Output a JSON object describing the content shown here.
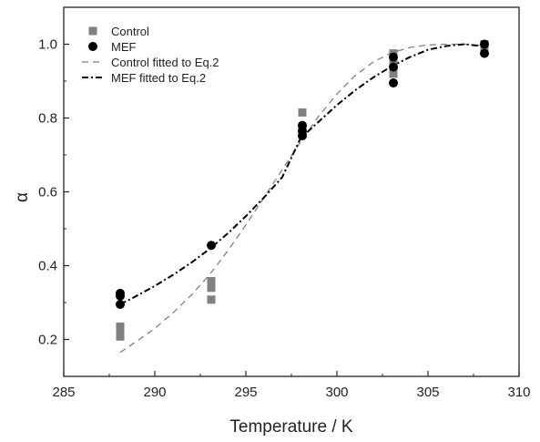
{
  "chart_data": {
    "type": "scatter",
    "title": "",
    "xlabel": "Temperature / K",
    "ylabel": "α",
    "xlim": [
      285,
      310
    ],
    "ylim": [
      0.1,
      1.1
    ],
    "xticks": [
      "285",
      "290",
      "295",
      "300",
      "305",
      "310"
    ],
    "yticks": [
      "0.2",
      "0.4",
      "0.6",
      "0.8",
      "1.0"
    ],
    "grid": false,
    "legend_position": "top-left",
    "series": [
      {
        "name": "Control",
        "kind": "points",
        "marker": "square",
        "color": "#808080",
        "points": [
          {
            "x": 288.1,
            "y": 0.208
          },
          {
            "x": 288.1,
            "y": 0.222
          },
          {
            "x": 288.1,
            "y": 0.235
          },
          {
            "x": 293.1,
            "y": 0.308
          },
          {
            "x": 293.1,
            "y": 0.34
          },
          {
            "x": 293.1,
            "y": 0.358
          },
          {
            "x": 298.1,
            "y": 0.815
          },
          {
            "x": 298.1,
            "y": 0.77
          },
          {
            "x": 298.1,
            "y": 0.76
          },
          {
            "x": 303.1,
            "y": 0.975
          },
          {
            "x": 303.1,
            "y": 0.955
          },
          {
            "x": 303.1,
            "y": 0.92
          },
          {
            "x": 308.1,
            "y": 1.0
          },
          {
            "x": 308.1,
            "y": 0.99
          }
        ]
      },
      {
        "name": "MEF",
        "kind": "points",
        "marker": "circle",
        "color": "#000000",
        "points": [
          {
            "x": 288.1,
            "y": 0.325
          },
          {
            "x": 288.1,
            "y": 0.318
          },
          {
            "x": 288.1,
            "y": 0.295
          },
          {
            "x": 293.1,
            "y": 0.455
          },
          {
            "x": 298.1,
            "y": 0.78
          },
          {
            "x": 298.1,
            "y": 0.765
          },
          {
            "x": 298.1,
            "y": 0.752
          },
          {
            "x": 303.1,
            "y": 0.965
          },
          {
            "x": 303.1,
            "y": 0.938
          },
          {
            "x": 303.1,
            "y": 0.895
          },
          {
            "x": 308.1,
            "y": 1.0
          },
          {
            "x": 308.1,
            "y": 0.975
          }
        ]
      },
      {
        "name": "Control fitted to Eq.2",
        "kind": "line",
        "dash": "dash",
        "color": "#808080",
        "points": [
          {
            "x": 288.1,
            "y": 0.165
          },
          {
            "x": 289.0,
            "y": 0.195
          },
          {
            "x": 290.0,
            "y": 0.23
          },
          {
            "x": 291.0,
            "y": 0.272
          },
          {
            "x": 292.0,
            "y": 0.32
          },
          {
            "x": 293.0,
            "y": 0.375
          },
          {
            "x": 294.0,
            "y": 0.44
          },
          {
            "x": 295.0,
            "y": 0.51
          },
          {
            "x": 296.0,
            "y": 0.585
          },
          {
            "x": 297.0,
            "y": 0.66
          },
          {
            "x": 298.0,
            "y": 0.735
          },
          {
            "x": 299.0,
            "y": 0.805
          },
          {
            "x": 300.0,
            "y": 0.865
          },
          {
            "x": 301.0,
            "y": 0.915
          },
          {
            "x": 302.0,
            "y": 0.952
          },
          {
            "x": 303.0,
            "y": 0.977
          },
          {
            "x": 304.0,
            "y": 0.991
          },
          {
            "x": 305.0,
            "y": 0.998
          },
          {
            "x": 306.0,
            "y": 1.0
          },
          {
            "x": 307.0,
            "y": 1.0
          },
          {
            "x": 308.1,
            "y": 0.996
          }
        ]
      },
      {
        "name": "MEF fitted to Eq.2",
        "kind": "line",
        "dash": "dashdot",
        "color": "#000000",
        "points": [
          {
            "x": 288.1,
            "y": 0.295
          },
          {
            "x": 289.0,
            "y": 0.318
          },
          {
            "x": 290.0,
            "y": 0.345
          },
          {
            "x": 291.0,
            "y": 0.375
          },
          {
            "x": 292.0,
            "y": 0.408
          },
          {
            "x": 293.0,
            "y": 0.445
          },
          {
            "x": 294.0,
            "y": 0.487
          },
          {
            "x": 295.0,
            "y": 0.534
          },
          {
            "x": 296.0,
            "y": 0.585
          },
          {
            "x": 297.0,
            "y": 0.64
          },
          {
            "x": 298.0,
            "y": 0.745
          },
          {
            "x": 299.0,
            "y": 0.79
          },
          {
            "x": 300.0,
            "y": 0.835
          },
          {
            "x": 301.0,
            "y": 0.875
          },
          {
            "x": 302.0,
            "y": 0.91
          },
          {
            "x": 303.0,
            "y": 0.94
          },
          {
            "x": 304.0,
            "y": 0.965
          },
          {
            "x": 305.0,
            "y": 0.985
          },
          {
            "x": 306.0,
            "y": 0.995
          },
          {
            "x": 307.0,
            "y": 1.0
          },
          {
            "x": 308.1,
            "y": 0.994
          }
        ]
      }
    ]
  }
}
